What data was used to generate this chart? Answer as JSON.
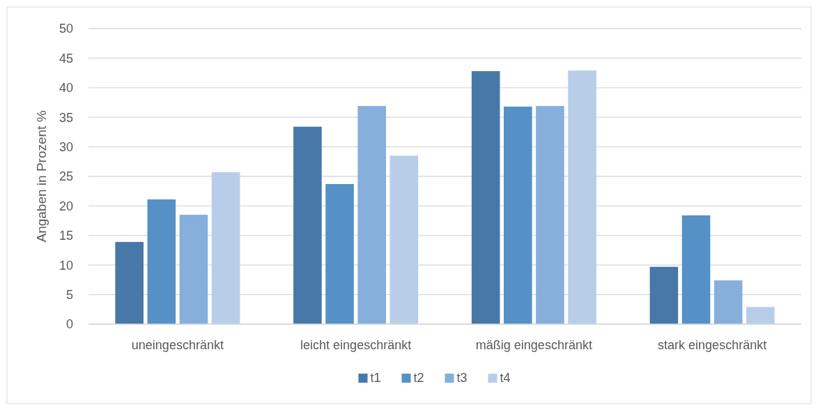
{
  "chart_data": {
    "type": "bar",
    "ylabel": "Angaben in Prozent %",
    "categories": [
      "uneingeschränkt",
      "leicht eingeschränkt",
      "mäßig eingeschränkt",
      "stark eingeschränkt"
    ],
    "series": [
      {
        "name": "t1",
        "color": "#4778a8",
        "values": [
          13.9,
          33.4,
          42.8,
          9.7
        ]
      },
      {
        "name": "t2",
        "color": "#5591c7",
        "values": [
          21.1,
          23.7,
          36.8,
          18.4
        ]
      },
      {
        "name": "t3",
        "color": "#86afdb",
        "values": [
          18.5,
          36.9,
          36.9,
          7.4
        ]
      },
      {
        "name": "t4",
        "color": "#b8cde8",
        "values": [
          25.7,
          28.5,
          42.9,
          2.9
        ]
      }
    ],
    "ylim": [
      0,
      50
    ],
    "yticks": [
      0,
      5,
      10,
      15,
      20,
      25,
      30,
      35,
      40,
      45,
      50
    ],
    "grid": "y",
    "legend": "bottom"
  }
}
